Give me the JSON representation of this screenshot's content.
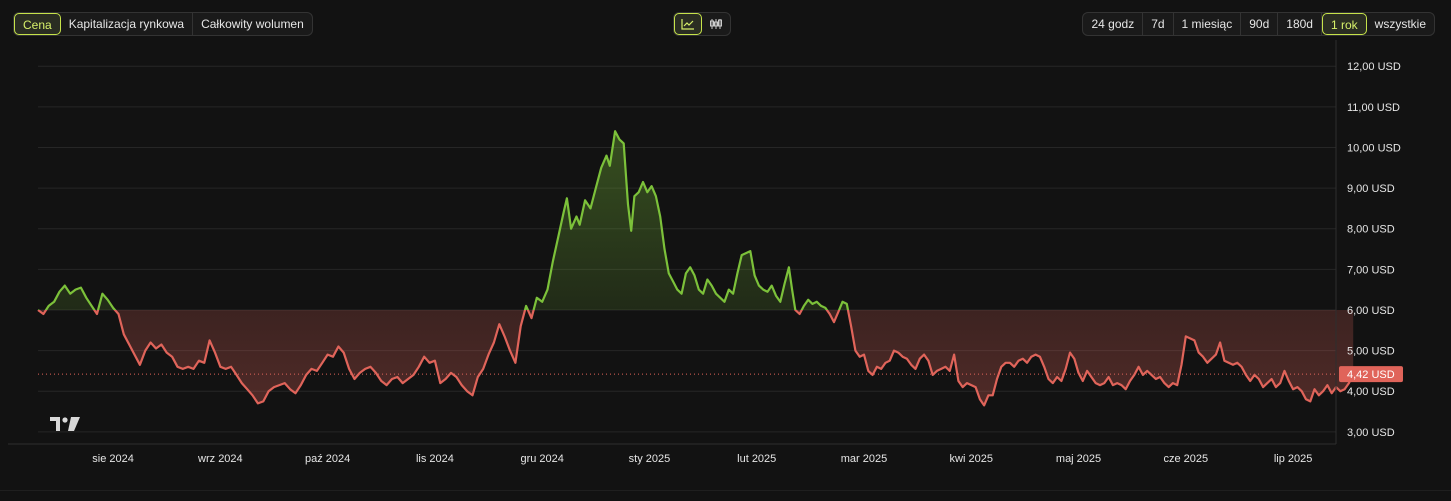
{
  "metric_tabs": [
    {
      "label": "Cena",
      "active": true
    },
    {
      "label": "Kapitalizacja rynkowa",
      "active": false
    },
    {
      "label": "Całkowity wolumen",
      "active": false
    }
  ],
  "view_toggle": [
    {
      "icon": "line-chart-icon",
      "active": true
    },
    {
      "icon": "candlestick-icon",
      "active": false
    }
  ],
  "range_tabs": [
    {
      "label": "24 godz",
      "active": false
    },
    {
      "label": "7d",
      "active": false
    },
    {
      "label": "1 miesiąc",
      "active": false
    },
    {
      "label": "90d",
      "active": false
    },
    {
      "label": "180d",
      "active": false
    },
    {
      "label": "1 rok",
      "active": true
    },
    {
      "label": "wszystkie",
      "active": false
    }
  ],
  "colors": {
    "up": "#7cc13a",
    "down": "#e0645a",
    "accent": "#c6e34a",
    "grid": "#262626",
    "current_label_bg": "#e0645a"
  },
  "current_price": {
    "value": 4.42,
    "label": "4,42 USD"
  },
  "chart_data": {
    "type": "line",
    "baseline": 6.0,
    "ylim": [
      2.7,
      12.4
    ],
    "y_ticks": [
      {
        "value": 12,
        "label": "12,00 USD"
      },
      {
        "value": 11,
        "label": "11,00 USD"
      },
      {
        "value": 10,
        "label": "10,00 USD"
      },
      {
        "value": 9,
        "label": "9,00 USD"
      },
      {
        "value": 8,
        "label": "8,00 USD"
      },
      {
        "value": 7,
        "label": "7,00 USD"
      },
      {
        "value": 6,
        "label": "6,00 USD"
      },
      {
        "value": 5,
        "label": "5,00 USD"
      },
      {
        "value": 4,
        "label": "4,00 USD"
      },
      {
        "value": 3,
        "label": "3,00 USD"
      }
    ],
    "xlim": [
      0,
      12.1
    ],
    "x_ticks": [
      {
        "value": 0.7,
        "label": "sie 2024"
      },
      {
        "value": 1.7,
        "label": "wrz 2024"
      },
      {
        "value": 2.7,
        "label": "paź 2024"
      },
      {
        "value": 3.7,
        "label": "lis 2024"
      },
      {
        "value": 4.7,
        "label": "gru 2024"
      },
      {
        "value": 5.7,
        "label": "sty 2025"
      },
      {
        "value": 6.7,
        "label": "lut 2025"
      },
      {
        "value": 7.7,
        "label": "mar 2025"
      },
      {
        "value": 8.7,
        "label": "kwi 2025"
      },
      {
        "value": 9.7,
        "label": "maj 2025"
      },
      {
        "value": 10.7,
        "label": "cze 2025"
      },
      {
        "value": 11.7,
        "label": "lip 2025"
      }
    ],
    "series": [
      {
        "points": [
          [
            0.0,
            6.0
          ],
          [
            0.05,
            5.9
          ],
          [
            0.1,
            6.1
          ],
          [
            0.15,
            6.2
          ],
          [
            0.2,
            6.45
          ],
          [
            0.25,
            6.6
          ],
          [
            0.3,
            6.4
          ],
          [
            0.35,
            6.5
          ],
          [
            0.4,
            6.55
          ],
          [
            0.45,
            6.3
          ],
          [
            0.5,
            6.1
          ],
          [
            0.55,
            5.9
          ],
          [
            0.6,
            6.4
          ],
          [
            0.65,
            6.25
          ],
          [
            0.7,
            6.05
          ],
          [
            0.75,
            5.9
          ],
          [
            0.8,
            5.4
          ],
          [
            0.85,
            5.15
          ],
          [
            0.9,
            4.9
          ],
          [
            0.95,
            4.65
          ],
          [
            1.0,
            5.0
          ],
          [
            1.05,
            5.2
          ],
          [
            1.1,
            5.05
          ],
          [
            1.15,
            5.15
          ],
          [
            1.2,
            4.95
          ],
          [
            1.25,
            4.85
          ],
          [
            1.3,
            4.6
          ],
          [
            1.35,
            4.55
          ],
          [
            1.4,
            4.6
          ],
          [
            1.45,
            4.55
          ],
          [
            1.5,
            4.75
          ],
          [
            1.55,
            4.7
          ],
          [
            1.6,
            5.25
          ],
          [
            1.65,
            4.95
          ],
          [
            1.7,
            4.6
          ],
          [
            1.75,
            4.55
          ],
          [
            1.8,
            4.6
          ],
          [
            1.85,
            4.4
          ],
          [
            1.9,
            4.2
          ],
          [
            1.95,
            4.05
          ],
          [
            2.0,
            3.9
          ],
          [
            2.05,
            3.7
          ],
          [
            2.1,
            3.75
          ],
          [
            2.15,
            4.0
          ],
          [
            2.2,
            4.1
          ],
          [
            2.25,
            4.15
          ],
          [
            2.3,
            4.2
          ],
          [
            2.35,
            4.05
          ],
          [
            2.4,
            3.95
          ],
          [
            2.45,
            4.15
          ],
          [
            2.5,
            4.4
          ],
          [
            2.55,
            4.55
          ],
          [
            2.6,
            4.5
          ],
          [
            2.65,
            4.7
          ],
          [
            2.7,
            4.9
          ],
          [
            2.75,
            4.85
          ],
          [
            2.8,
            5.1
          ],
          [
            2.85,
            4.95
          ],
          [
            2.9,
            4.55
          ],
          [
            2.95,
            4.3
          ],
          [
            3.0,
            4.45
          ],
          [
            3.05,
            4.55
          ],
          [
            3.1,
            4.6
          ],
          [
            3.15,
            4.45
          ],
          [
            3.2,
            4.25
          ],
          [
            3.25,
            4.15
          ],
          [
            3.3,
            4.3
          ],
          [
            3.35,
            4.35
          ],
          [
            3.4,
            4.2
          ],
          [
            3.45,
            4.3
          ],
          [
            3.5,
            4.4
          ],
          [
            3.55,
            4.6
          ],
          [
            3.6,
            4.85
          ],
          [
            3.65,
            4.7
          ],
          [
            3.7,
            4.75
          ],
          [
            3.75,
            4.2
          ],
          [
            3.8,
            4.3
          ],
          [
            3.85,
            4.45
          ],
          [
            3.9,
            4.35
          ],
          [
            3.95,
            4.15
          ],
          [
            4.0,
            4.0
          ],
          [
            4.05,
            3.9
          ],
          [
            4.1,
            4.35
          ],
          [
            4.15,
            4.55
          ],
          [
            4.2,
            4.9
          ],
          [
            4.25,
            5.2
          ],
          [
            4.3,
            5.65
          ],
          [
            4.35,
            5.35
          ],
          [
            4.4,
            5.0
          ],
          [
            4.45,
            4.7
          ],
          [
            4.5,
            5.6
          ],
          [
            4.55,
            6.1
          ],
          [
            4.6,
            5.8
          ],
          [
            4.65,
            6.3
          ],
          [
            4.7,
            6.2
          ],
          [
            4.75,
            6.5
          ],
          [
            4.8,
            7.2
          ],
          [
            4.85,
            7.8
          ],
          [
            4.9,
            8.4
          ],
          [
            4.93,
            8.75
          ],
          [
            4.97,
            8.0
          ],
          [
            5.02,
            8.3
          ],
          [
            5.05,
            8.1
          ],
          [
            5.1,
            8.7
          ],
          [
            5.15,
            8.5
          ],
          [
            5.2,
            9.0
          ],
          [
            5.25,
            9.5
          ],
          [
            5.3,
            9.8
          ],
          [
            5.33,
            9.55
          ],
          [
            5.38,
            10.4
          ],
          [
            5.42,
            10.2
          ],
          [
            5.46,
            10.1
          ],
          [
            5.5,
            8.6
          ],
          [
            5.53,
            7.95
          ],
          [
            5.56,
            8.8
          ],
          [
            5.6,
            8.9
          ],
          [
            5.64,
            9.15
          ],
          [
            5.68,
            8.9
          ],
          [
            5.72,
            9.05
          ],
          [
            5.76,
            8.8
          ],
          [
            5.8,
            8.3
          ],
          [
            5.84,
            7.5
          ],
          [
            5.88,
            6.9
          ],
          [
            5.92,
            6.7
          ],
          [
            5.96,
            6.5
          ],
          [
            6.0,
            6.4
          ],
          [
            6.04,
            6.9
          ],
          [
            6.08,
            7.05
          ],
          [
            6.12,
            6.85
          ],
          [
            6.16,
            6.5
          ],
          [
            6.2,
            6.4
          ],
          [
            6.24,
            6.75
          ],
          [
            6.28,
            6.6
          ],
          [
            6.32,
            6.4
          ],
          [
            6.36,
            6.3
          ],
          [
            6.4,
            6.2
          ],
          [
            6.44,
            6.5
          ],
          [
            6.48,
            6.4
          ],
          [
            6.52,
            6.9
          ],
          [
            6.56,
            7.35
          ],
          [
            6.6,
            7.4
          ],
          [
            6.64,
            7.45
          ],
          [
            6.68,
            6.85
          ],
          [
            6.72,
            6.6
          ],
          [
            6.76,
            6.5
          ],
          [
            6.8,
            6.45
          ],
          [
            6.84,
            6.6
          ],
          [
            6.88,
            6.35
          ],
          [
            6.92,
            6.2
          ],
          [
            6.96,
            6.65
          ],
          [
            7.0,
            7.05
          ],
          [
            7.03,
            6.5
          ],
          [
            7.06,
            6.0
          ],
          [
            7.1,
            5.9
          ],
          [
            7.14,
            6.1
          ],
          [
            7.18,
            6.25
          ],
          [
            7.22,
            6.15
          ],
          [
            7.26,
            6.2
          ],
          [
            7.3,
            6.1
          ],
          [
            7.34,
            6.05
          ],
          [
            7.38,
            5.9
          ],
          [
            7.42,
            5.7
          ],
          [
            7.46,
            5.95
          ],
          [
            7.5,
            6.2
          ],
          [
            7.54,
            6.15
          ],
          [
            7.58,
            5.6
          ],
          [
            7.62,
            5.0
          ],
          [
            7.66,
            4.85
          ],
          [
            7.7,
            4.9
          ],
          [
            7.74,
            4.5
          ],
          [
            7.78,
            4.4
          ],
          [
            7.82,
            4.6
          ],
          [
            7.86,
            4.55
          ],
          [
            7.9,
            4.7
          ],
          [
            7.94,
            4.75
          ],
          [
            7.98,
            5.0
          ],
          [
            8.02,
            4.95
          ],
          [
            8.06,
            4.85
          ],
          [
            8.1,
            4.8
          ],
          [
            8.14,
            4.65
          ],
          [
            8.18,
            4.55
          ],
          [
            8.22,
            4.8
          ],
          [
            8.26,
            4.9
          ],
          [
            8.3,
            4.75
          ],
          [
            8.34,
            4.4
          ],
          [
            8.38,
            4.5
          ],
          [
            8.42,
            4.55
          ],
          [
            8.46,
            4.6
          ],
          [
            8.5,
            4.5
          ],
          [
            8.54,
            4.9
          ],
          [
            8.58,
            4.25
          ],
          [
            8.62,
            4.1
          ],
          [
            8.66,
            4.2
          ],
          [
            8.7,
            4.15
          ],
          [
            8.74,
            4.1
          ],
          [
            8.78,
            3.8
          ],
          [
            8.82,
            3.65
          ],
          [
            8.86,
            3.9
          ],
          [
            8.9,
            3.9
          ],
          [
            8.94,
            4.3
          ],
          [
            8.98,
            4.6
          ],
          [
            9.02,
            4.7
          ],
          [
            9.06,
            4.7
          ],
          [
            9.1,
            4.6
          ],
          [
            9.14,
            4.75
          ],
          [
            9.18,
            4.8
          ],
          [
            9.22,
            4.7
          ],
          [
            9.26,
            4.85
          ],
          [
            9.3,
            4.9
          ],
          [
            9.34,
            4.85
          ],
          [
            9.38,
            4.6
          ],
          [
            9.42,
            4.3
          ],
          [
            9.46,
            4.2
          ],
          [
            9.5,
            4.35
          ],
          [
            9.54,
            4.25
          ],
          [
            9.58,
            4.55
          ],
          [
            9.62,
            4.95
          ],
          [
            9.66,
            4.8
          ],
          [
            9.7,
            4.45
          ],
          [
            9.74,
            4.25
          ],
          [
            9.78,
            4.5
          ],
          [
            9.82,
            4.35
          ],
          [
            9.86,
            4.2
          ],
          [
            9.9,
            4.15
          ],
          [
            9.94,
            4.2
          ],
          [
            9.98,
            4.35
          ],
          [
            10.02,
            4.15
          ],
          [
            10.06,
            4.2
          ],
          [
            10.1,
            4.15
          ],
          [
            10.14,
            4.05
          ],
          [
            10.18,
            4.25
          ],
          [
            10.22,
            4.4
          ],
          [
            10.26,
            4.6
          ],
          [
            10.3,
            4.4
          ],
          [
            10.34,
            4.5
          ],
          [
            10.38,
            4.4
          ],
          [
            10.42,
            4.3
          ],
          [
            10.46,
            4.35
          ],
          [
            10.5,
            4.2
          ],
          [
            10.54,
            4.1
          ],
          [
            10.58,
            4.2
          ],
          [
            10.62,
            4.15
          ],
          [
            10.66,
            4.65
          ],
          [
            10.7,
            5.35
          ],
          [
            10.74,
            5.3
          ],
          [
            10.78,
            5.25
          ],
          [
            10.82,
            4.95
          ],
          [
            10.86,
            4.85
          ],
          [
            10.9,
            4.7
          ],
          [
            10.94,
            4.8
          ],
          [
            10.98,
            4.9
          ],
          [
            11.02,
            5.2
          ],
          [
            11.06,
            4.75
          ],
          [
            11.1,
            4.7
          ],
          [
            11.14,
            4.65
          ],
          [
            11.18,
            4.7
          ],
          [
            11.22,
            4.6
          ],
          [
            11.26,
            4.4
          ],
          [
            11.3,
            4.25
          ],
          [
            11.34,
            4.4
          ],
          [
            11.38,
            4.3
          ],
          [
            11.42,
            4.1
          ],
          [
            11.46,
            4.2
          ],
          [
            11.5,
            4.3
          ],
          [
            11.54,
            4.1
          ],
          [
            11.58,
            4.2
          ],
          [
            11.62,
            4.5
          ],
          [
            11.66,
            4.25
          ],
          [
            11.7,
            4.05
          ],
          [
            11.74,
            4.1
          ],
          [
            11.78,
            4.0
          ],
          [
            11.82,
            3.8
          ],
          [
            11.86,
            3.75
          ],
          [
            11.9,
            4.05
          ],
          [
            11.94,
            3.9
          ],
          [
            11.98,
            4.0
          ],
          [
            12.02,
            4.15
          ],
          [
            12.06,
            3.95
          ],
          [
            12.1,
            4.1
          ],
          [
            12.14,
            4.0
          ],
          [
            12.18,
            4.05
          ],
          [
            12.22,
            4.2
          ],
          [
            12.26,
            4.42
          ]
        ]
      }
    ]
  }
}
